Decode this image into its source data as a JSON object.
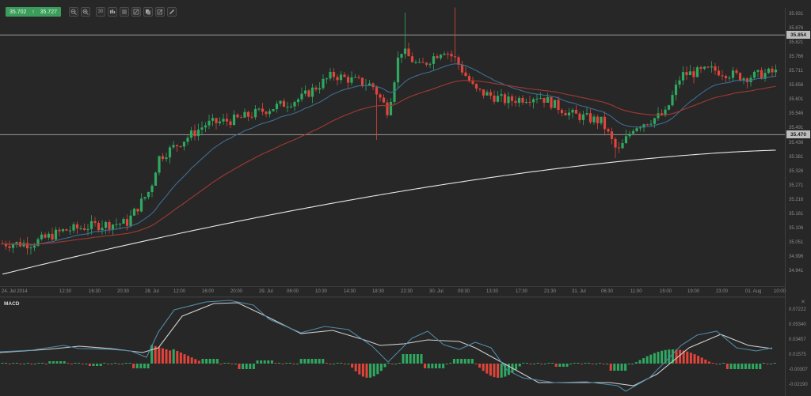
{
  "toolbar": {
    "bid": "35.702",
    "ask": "35.727",
    "direction_icon": "arrow-up-icon",
    "buttons": [
      {
        "name": "zoom-out-button",
        "icon": "zoom-out-icon",
        "x": 87
      },
      {
        "name": "zoom-in-button",
        "icon": "zoom-in-icon",
        "x": 102
      },
      {
        "name": "timeframe-button",
        "icon": "timeframe-icon",
        "label": "30",
        "x": 121
      },
      {
        "name": "chart-type-button",
        "icon": "candlestick-icon",
        "x": 136
      },
      {
        "name": "indicators-button",
        "icon": "indicators-icon",
        "x": 151
      },
      {
        "name": "drawing-tools-button",
        "icon": "drawing-icon",
        "x": 166
      },
      {
        "name": "copy-button",
        "icon": "copy-icon",
        "x": 181
      },
      {
        "name": "edit-button",
        "icon": "edit-icon",
        "x": 196
      },
      {
        "name": "pencil-button",
        "icon": "pencil-icon",
        "x": 211
      }
    ]
  },
  "colors": {
    "background": "#272727",
    "bull": "#2fa860",
    "bear": "#e0443a",
    "ema_fast": "#3e6d93",
    "ema_slow": "#a23a32",
    "sma_long": "#e6e6e6",
    "hline": "#9a9a9a",
    "macd_line": "#4f8aa8",
    "signal_line": "#d0d0d0"
  },
  "chart_data": [
    {
      "type": "candlestick",
      "title": "",
      "instrument_price": {
        "bid": 35.702,
        "ask": 35.727
      },
      "ylim": [
        34.81,
        35.96
      ],
      "y_ticks": [
        "35.931",
        "35.876",
        "35.821",
        "35.766",
        "35.711",
        "35.656",
        "35.601",
        "35.546",
        "35.491",
        "35.436",
        "35.381",
        "35.326",
        "35.271",
        "35.216",
        "35.161",
        "35.106",
        "35.051",
        "34.996",
        "34.941"
      ],
      "horizontal_lines": [
        {
          "value": 35.854,
          "label": "35.854"
        },
        {
          "value": 35.47,
          "label": "35.470"
        }
      ],
      "x_ticks": [
        "24. Jul 2014",
        "12:30",
        "16:30",
        "20:30",
        "28. Jul",
        "12:00",
        "16:00",
        "20:00",
        "29. Jul",
        "06:00",
        "10:30",
        "14:30",
        "18:30",
        "22:30",
        "30. Jul",
        "09:30",
        "13:30",
        "17:30",
        "21:30",
        "31. Jul",
        "06:30",
        "11:00",
        "15:00",
        "19:00",
        "23:00",
        "01. Aug",
        "10:00"
      ],
      "series": [
        {
          "name": "EMA fast",
          "color": "#3e6d93"
        },
        {
          "name": "EMA slow",
          "color": "#a23a32"
        },
        {
          "name": "SMA long",
          "color": "#e6e6e6"
        }
      ],
      "approx_close_path": [
        [
          0,
          35.05
        ],
        [
          40,
          35.05
        ],
        [
          80,
          35.1
        ],
        [
          120,
          35.12
        ],
        [
          160,
          35.13
        ],
        [
          190,
          35.26
        ],
        [
          200,
          35.38
        ],
        [
          260,
          35.51
        ],
        [
          300,
          35.53
        ],
        [
          340,
          35.57
        ],
        [
          380,
          35.61
        ],
        [
          420,
          35.7
        ],
        [
          470,
          35.66
        ],
        [
          490,
          35.56
        ],
        [
          505,
          35.8
        ],
        [
          530,
          35.73
        ],
        [
          560,
          35.8
        ],
        [
          575,
          35.76
        ],
        [
          600,
          35.64
        ],
        [
          640,
          35.6
        ],
        [
          680,
          35.62
        ],
        [
          720,
          35.55
        ],
        [
          760,
          35.52
        ],
        [
          780,
          35.4
        ],
        [
          800,
          35.5
        ],
        [
          840,
          35.55
        ],
        [
          860,
          35.7
        ],
        [
          900,
          35.72
        ],
        [
          940,
          35.69
        ],
        [
          975,
          35.71
        ]
      ]
    },
    {
      "type": "line",
      "title": "MACD",
      "ylim": [
        -0.03,
        0.08
      ],
      "y_ticks": [
        "0.07222",
        "0.05340",
        "0.03457",
        "0.01575",
        "-0.00307",
        "-0.02190"
      ],
      "series": [
        {
          "name": "MACD",
          "color": "#4f8aa8"
        },
        {
          "name": "Signal",
          "color": "#d0d0d0"
        },
        {
          "name": "Histogram",
          "type": "bar",
          "pos_color": "#2fa860",
          "neg_color": "#e0443a"
        }
      ]
    }
  ],
  "macd": {
    "label": "MACD",
    "close_icon": "close-icon"
  }
}
